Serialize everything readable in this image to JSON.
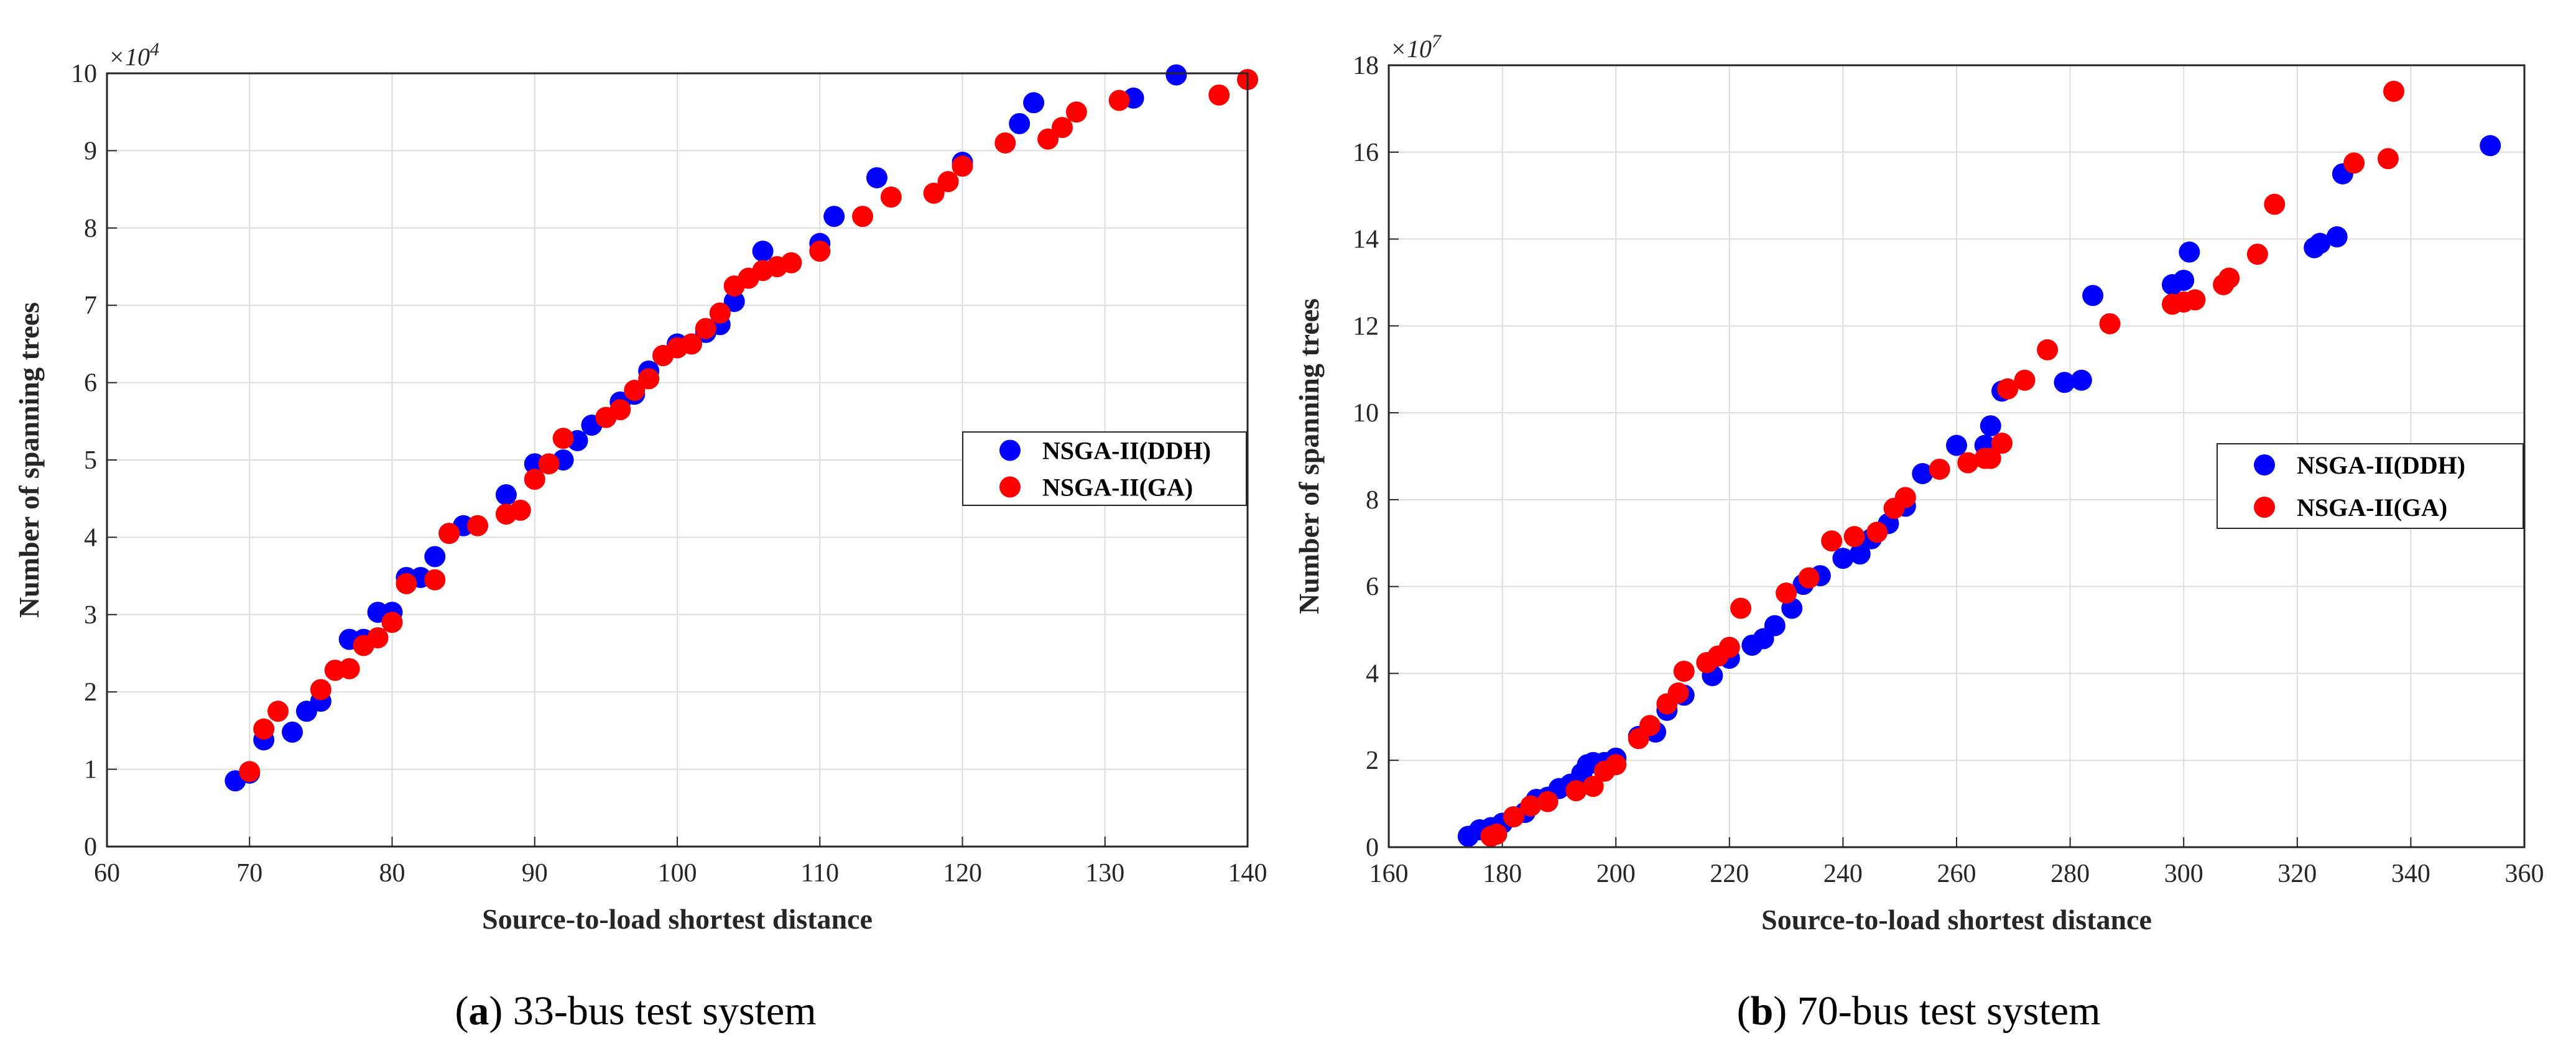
{
  "figure": {
    "captions": [
      {
        "letter": "a",
        "text": " 33-bus test system"
      },
      {
        "letter": "b",
        "text": " 70-bus test system"
      }
    ]
  },
  "colors": {
    "ddh": "#0000ff",
    "ga": "#ff0000",
    "grid": "#dddddd",
    "axis": "#262626"
  },
  "chart_data": [
    {
      "type": "scatter",
      "panel": "a",
      "xlabel": "Source-to-load shortest distance",
      "ylabel": "Number of spanning trees",
      "y_multiplier": "×10",
      "y_multiplier_exp": "4",
      "xlim": [
        60,
        140
      ],
      "ylim": [
        0,
        10
      ],
      "xticks": [
        60,
        70,
        80,
        90,
        100,
        110,
        120,
        130,
        140
      ],
      "yticks": [
        0,
        1,
        2,
        3,
        4,
        5,
        6,
        7,
        8,
        9,
        10
      ],
      "grid": true,
      "legend_position": "right-middle",
      "series": [
        {
          "name": "NSGA-II(DDH)",
          "color": "#0000ff",
          "points": [
            [
              69,
              0.85
            ],
            [
              70,
              0.95
            ],
            [
              71,
              1.38
            ],
            [
              73,
              1.48
            ],
            [
              74,
              1.75
            ],
            [
              75,
              1.88
            ],
            [
              76,
              2.28
            ],
            [
              77,
              2.68
            ],
            [
              78,
              2.68
            ],
            [
              79,
              3.03
            ],
            [
              80,
              3.03
            ],
            [
              81,
              3.48
            ],
            [
              82,
              3.48
            ],
            [
              83,
              3.75
            ],
            [
              84,
              4.05
            ],
            [
              85,
              4.15
            ],
            [
              88,
              4.55
            ],
            [
              90,
              4.95
            ],
            [
              92,
              5.0
            ],
            [
              93,
              5.25
            ],
            [
              94,
              5.45
            ],
            [
              95,
              5.55
            ],
            [
              96,
              5.75
            ],
            [
              97,
              5.85
            ],
            [
              98,
              6.15
            ],
            [
              99,
              6.35
            ],
            [
              100,
              6.5
            ],
            [
              101,
              6.5
            ],
            [
              102,
              6.65
            ],
            [
              103,
              6.75
            ],
            [
              104,
              7.05
            ],
            [
              105,
              7.35
            ],
            [
              106,
              7.7
            ],
            [
              110,
              7.8
            ],
            [
              111,
              8.15
            ],
            [
              114,
              8.65
            ],
            [
              120,
              8.85
            ],
            [
              124,
              9.35
            ],
            [
              125,
              9.62
            ],
            [
              132,
              9.68
            ],
            [
              135,
              9.98
            ]
          ]
        },
        {
          "name": "NSGA-II(GA)",
          "color": "#ff0000",
          "points": [
            [
              70,
              0.97
            ],
            [
              71,
              1.52
            ],
            [
              72,
              1.75
            ],
            [
              75,
              2.03
            ],
            [
              76,
              2.28
            ],
            [
              77,
              2.3
            ],
            [
              78,
              2.6
            ],
            [
              79,
              2.7
            ],
            [
              80,
              2.9
            ],
            [
              81,
              3.4
            ],
            [
              83,
              3.45
            ],
            [
              84,
              4.05
            ],
            [
              86,
              4.15
            ],
            [
              88,
              4.3
            ],
            [
              89,
              4.35
            ],
            [
              90,
              4.75
            ],
            [
              91,
              4.95
            ],
            [
              92,
              5.28
            ],
            [
              95,
              5.55
            ],
            [
              96,
              5.65
            ],
            [
              97,
              5.9
            ],
            [
              98,
              6.05
            ],
            [
              99,
              6.35
            ],
            [
              100,
              6.45
            ],
            [
              101,
              6.5
            ],
            [
              102,
              6.7
            ],
            [
              103,
              6.9
            ],
            [
              104,
              7.25
            ],
            [
              105,
              7.35
            ],
            [
              106,
              7.45
            ],
            [
              107,
              7.5
            ],
            [
              108,
              7.55
            ],
            [
              110,
              7.7
            ],
            [
              113,
              8.15
            ],
            [
              115,
              8.4
            ],
            [
              118,
              8.45
            ],
            [
              119,
              8.6
            ],
            [
              120,
              8.8
            ],
            [
              123,
              9.1
            ],
            [
              126,
              9.15
            ],
            [
              127,
              9.3
            ],
            [
              128,
              9.5
            ],
            [
              131,
              9.65
            ],
            [
              138,
              9.72
            ],
            [
              140,
              9.92
            ]
          ]
        }
      ]
    },
    {
      "type": "scatter",
      "panel": "b",
      "xlabel": "Source-to-load shortest distance",
      "ylabel": "Number of spanning trees",
      "y_multiplier": "×10",
      "y_multiplier_exp": "7",
      "xlim": [
        160,
        360
      ],
      "ylim": [
        0,
        18
      ],
      "xticks": [
        160,
        180,
        200,
        220,
        240,
        260,
        280,
        300,
        320,
        340,
        360
      ],
      "yticks": [
        0,
        2,
        4,
        6,
        8,
        10,
        12,
        14,
        16,
        18
      ],
      "grid": true,
      "legend_position": "right-middle",
      "series": [
        {
          "name": "NSGA-II(DDH)",
          "color": "#0000ff",
          "points": [
            [
              174,
              0.25
            ],
            [
              176,
              0.4
            ],
            [
              178,
              0.45
            ],
            [
              180,
              0.55
            ],
            [
              182,
              0.7
            ],
            [
              184,
              0.8
            ],
            [
              186,
              1.1
            ],
            [
              188,
              1.15
            ],
            [
              190,
              1.35
            ],
            [
              192,
              1.45
            ],
            [
              194,
              1.7
            ],
            [
              195,
              1.9
            ],
            [
              196,
              1.95
            ],
            [
              198,
              1.95
            ],
            [
              200,
              2.05
            ],
            [
              204,
              2.55
            ],
            [
              207,
              2.65
            ],
            [
              209,
              3.15
            ],
            [
              212,
              3.5
            ],
            [
              217,
              3.95
            ],
            [
              220,
              4.35
            ],
            [
              224,
              4.65
            ],
            [
              226,
              4.8
            ],
            [
              228,
              5.1
            ],
            [
              231,
              5.5
            ],
            [
              233,
              6.05
            ],
            [
              236,
              6.25
            ],
            [
              240,
              6.65
            ],
            [
              243,
              6.75
            ],
            [
              245,
              7.1
            ],
            [
              248,
              7.45
            ],
            [
              251,
              7.85
            ],
            [
              254,
              8.6
            ],
            [
              260,
              9.25
            ],
            [
              265,
              9.25
            ],
            [
              266,
              9.7
            ],
            [
              268,
              10.5
            ],
            [
              279,
              10.7
            ],
            [
              282,
              10.75
            ],
            [
              284,
              12.7
            ],
            [
              298,
              12.95
            ],
            [
              300,
              13.05
            ],
            [
              301,
              13.7
            ],
            [
              323,
              13.8
            ],
            [
              324,
              13.9
            ],
            [
              327,
              14.05
            ],
            [
              328,
              15.5
            ],
            [
              354,
              16.15
            ]
          ]
        },
        {
          "name": "NSGA-II(GA)",
          "color": "#ff0000",
          "points": [
            [
              178,
              0.25
            ],
            [
              179,
              0.3
            ],
            [
              182,
              0.7
            ],
            [
              185,
              0.95
            ],
            [
              188,
              1.05
            ],
            [
              193,
              1.3
            ],
            [
              196,
              1.4
            ],
            [
              198,
              1.75
            ],
            [
              200,
              1.9
            ],
            [
              204,
              2.5
            ],
            [
              206,
              2.8
            ],
            [
              209,
              3.3
            ],
            [
              211,
              3.55
            ],
            [
              212,
              4.05
            ],
            [
              216,
              4.25
            ],
            [
              218,
              4.4
            ],
            [
              220,
              4.6
            ],
            [
              222,
              5.5
            ],
            [
              230,
              5.85
            ],
            [
              234,
              6.2
            ],
            [
              238,
              7.05
            ],
            [
              242,
              7.15
            ],
            [
              246,
              7.25
            ],
            [
              249,
              7.8
            ],
            [
              251,
              8.05
            ],
            [
              257,
              8.7
            ],
            [
              262,
              8.85
            ],
            [
              265,
              8.95
            ],
            [
              266,
              8.95
            ],
            [
              268,
              9.3
            ],
            [
              269,
              10.55
            ],
            [
              272,
              10.75
            ],
            [
              276,
              11.45
            ],
            [
              287,
              12.05
            ],
            [
              298,
              12.5
            ],
            [
              300,
              12.55
            ],
            [
              302,
              12.6
            ],
            [
              307,
              12.95
            ],
            [
              308,
              13.1
            ],
            [
              313,
              13.65
            ],
            [
              316,
              14.8
            ],
            [
              330,
              15.75
            ],
            [
              336,
              15.85
            ],
            [
              337,
              17.4
            ]
          ]
        }
      ]
    }
  ]
}
